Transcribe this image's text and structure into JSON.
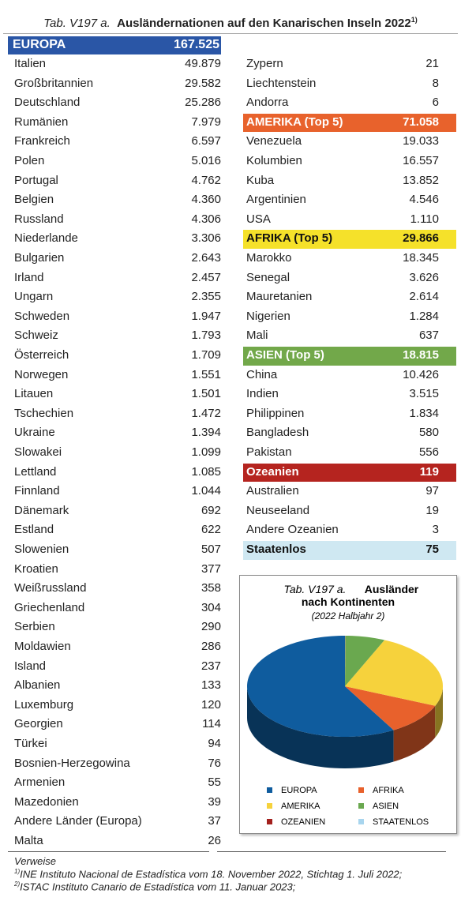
{
  "header": {
    "title_prefix": "Tab. V197 a.",
    "title": "Ausländernationen auf den Kanarischen Inseln 2022",
    "title_note": "1)"
  },
  "left": {
    "header": {
      "name": "EUROPA",
      "total": "167.525"
    },
    "rows": [
      [
        "Italien",
        "49.879"
      ],
      [
        "Großbritannien",
        "29.582"
      ],
      [
        "Deutschland",
        "25.286"
      ],
      [
        "Rumänien",
        "7.979"
      ],
      [
        "Frankreich",
        "6.597"
      ],
      [
        "Polen",
        "5.016"
      ],
      [
        "Portugal",
        "4.762"
      ],
      [
        "Belgien",
        "4.360"
      ],
      [
        "Russland",
        "4.306"
      ],
      [
        "Niederlande",
        "3.306"
      ],
      [
        "Bulgarien",
        "2.643"
      ],
      [
        "Irland",
        "2.457"
      ],
      [
        "Ungarn",
        "2.355"
      ],
      [
        "Schweden",
        "1.947"
      ],
      [
        "Schweiz",
        "1.793"
      ],
      [
        "Österreich",
        "1.709"
      ],
      [
        "Norwegen",
        "1.551"
      ],
      [
        "Litauen",
        "1.501"
      ],
      [
        "Tschechien",
        "1.472"
      ],
      [
        "Ukraine",
        "1.394"
      ],
      [
        "Slowakei",
        "1.099"
      ],
      [
        "Lettland",
        "1.085"
      ],
      [
        "Finnland",
        "1.044"
      ],
      [
        "Dänemark",
        "692"
      ],
      [
        "Estland",
        "622"
      ],
      [
        "Slowenien",
        "507"
      ],
      [
        "Kroatien",
        "377"
      ],
      [
        "Weißrussland",
        "358"
      ],
      [
        "Griechenland",
        "304"
      ],
      [
        "Serbien",
        "290"
      ],
      [
        "Moldawien",
        "286"
      ],
      [
        "Island",
        "237"
      ],
      [
        "Albanien",
        "133"
      ],
      [
        "Luxemburg",
        "120"
      ],
      [
        "Georgien",
        "114"
      ],
      [
        "Türkei",
        "94"
      ],
      [
        "Bosnien-Herzegowina",
        "76"
      ],
      [
        "Armenien",
        "55"
      ],
      [
        "Mazedonien",
        "39"
      ],
      [
        "Andere Länder (Europa)",
        "37"
      ],
      [
        "Malta",
        "26"
      ]
    ]
  },
  "right": {
    "groups": [
      {
        "rows": [
          [
            "Zypern",
            "21"
          ],
          [
            "Liechtenstein",
            "8"
          ],
          [
            "Andorra",
            "6"
          ]
        ]
      },
      {
        "header": {
          "name": "AMERIKA (Top 5)",
          "total": "71.058"
        },
        "rows": [
          [
            "Venezuela",
            "19.033"
          ],
          [
            "Kolumbien",
            "16.557"
          ],
          [
            "Kuba",
            "13.852"
          ],
          [
            "Argentinien",
            "4.546"
          ],
          [
            "USA",
            "1.110"
          ]
        ]
      },
      {
        "header": {
          "name": "AFRIKA (Top 5)",
          "total": "29.866"
        },
        "rows": [
          [
            "Marokko",
            "18.345"
          ],
          [
            "Senegal",
            "3.626"
          ],
          [
            "Mauretanien",
            "2.614"
          ],
          [
            "Nigerien",
            "1.284"
          ],
          [
            "Mali",
            "637"
          ]
        ]
      },
      {
        "header": {
          "name": "ASIEN (Top 5)",
          "total": "18.815"
        },
        "rows": [
          [
            "China",
            "10.426"
          ],
          [
            "Indien",
            "3.515"
          ],
          [
            "Philippinen",
            "1.834"
          ],
          [
            "Bangladesh",
            "580"
          ],
          [
            "Pakistan",
            "556"
          ]
        ]
      },
      {
        "header": {
          "name": "Ozeanien",
          "total": "119"
        },
        "rows": [
          [
            "Australien",
            "97"
          ],
          [
            "Neuseeland",
            "19"
          ],
          [
            "Andere Ozeanien",
            "3"
          ]
        ]
      },
      {
        "header": {
          "name": "Staatenlos",
          "total": "75"
        },
        "rows": []
      }
    ]
  },
  "chart_data": {
    "type": "pie",
    "title_prefix": "Tab. V197 a.",
    "title": "Ausländer nach Kontinenten",
    "subtitle": "(2022 Halbjahr 2)",
    "categories": [
      "EUROPA",
      "AFRIKA",
      "AMERIKA",
      "ASIEN",
      "OZEANIEN",
      "STAATENLOS"
    ],
    "values": [
      167525,
      29866,
      71058,
      18815,
      119,
      75
    ],
    "colors": [
      "#0f5c9e",
      "#e8612c",
      "#f6d23c",
      "#6aa84f",
      "#a3201d",
      "#a8d5ee"
    ]
  },
  "footer": {
    "heading": "Verweise",
    "notes": [
      {
        "marker": "1)",
        "text": "INE Instituto Nacional de Estadística vom 18. November 2022, Stichtag 1. Juli 2022;"
      },
      {
        "marker": "2)",
        "text": "ISTAC Instituto Canario de Estadística vom 11. Januar 2023;"
      }
    ]
  }
}
